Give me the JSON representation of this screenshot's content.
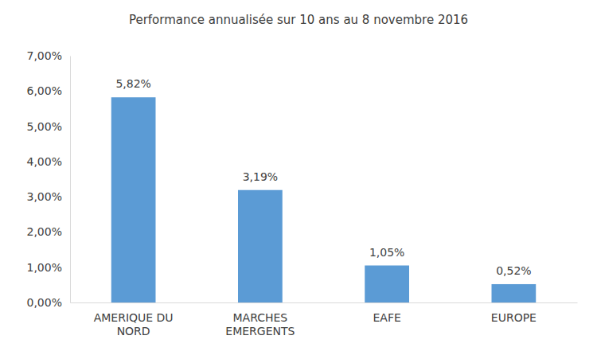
{
  "chart_data": {
    "type": "bar",
    "title": "Performance annualisée sur 10 ans au 8 novembre 2016",
    "categories": [
      "AMERIQUE DU NORD",
      "MARCHES EMERGENTS",
      "EAFE",
      "EUROPE"
    ],
    "values": [
      5.82,
      3.19,
      1.05,
      0.52
    ],
    "value_labels": [
      "5,82%",
      "3,19%",
      "1,05%",
      "0,52%"
    ],
    "color": "#5b9bd5",
    "ylim": [
      0,
      7
    ],
    "yticks": [
      {
        "value": 0,
        "label": "0,00%"
      },
      {
        "value": 1,
        "label": "1,00%"
      },
      {
        "value": 2,
        "label": "2,00%"
      },
      {
        "value": 3,
        "label": "3,00%"
      },
      {
        "value": 4,
        "label": "4,00%"
      },
      {
        "value": 5,
        "label": "5,00%"
      },
      {
        "value": 6,
        "label": "6,00%"
      },
      {
        "value": 7,
        "label": "7,00%"
      }
    ],
    "grid": false,
    "data_labels": true
  }
}
